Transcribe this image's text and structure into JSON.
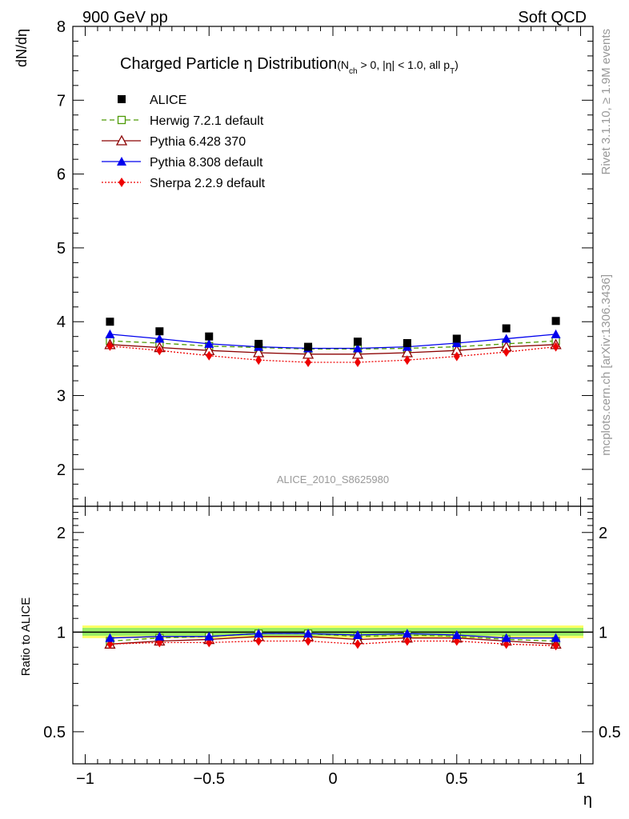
{
  "header": {
    "left": "900 GeV pp",
    "right": "Soft QCD"
  },
  "side_labels": {
    "rivet": "Rivet 3.1.10, ≥ 1.9M events",
    "mcplots": "mcplots.cern.ch [arXiv:1306.3436]"
  },
  "chart_data": [
    {
      "type": "line",
      "panel": "main",
      "title": "Charged Particle η Distribution",
      "title_cut": {
        "pre": "(N",
        "sub1": "ch",
        "mid": " > 0, |η| < 1.0, all p",
        "sub2": "T",
        "post": ")"
      },
      "ylabel": "dN/dη",
      "ylim": [
        1.5,
        8.0
      ],
      "xlim": [
        -1.05,
        1.05
      ],
      "yticks": [
        "2",
        "3",
        "4",
        "5",
        "6",
        "7",
        "8"
      ],
      "watermark": "ALICE_2010_S8625980",
      "legend_position": "top-left",
      "x": [
        -0.9,
        -0.7,
        -0.5,
        -0.3,
        -0.1,
        0.1,
        0.3,
        0.5,
        0.7,
        0.9
      ],
      "series": [
        {
          "name": "ALICE",
          "color": "#000000",
          "marker": "square-filled",
          "line": "none",
          "values": [
            4.0,
            3.87,
            3.8,
            3.7,
            3.66,
            3.73,
            3.71,
            3.77,
            3.91,
            4.01
          ]
        },
        {
          "name": "Herwig 7.2.1 default",
          "color": "#4e9a06",
          "marker": "square-open",
          "line": "dashed",
          "values": [
            3.74,
            3.71,
            3.67,
            3.65,
            3.63,
            3.63,
            3.64,
            3.66,
            3.7,
            3.74
          ]
        },
        {
          "name": "Pythia 6.428 370",
          "color": "#8b0000",
          "marker": "triangle-open",
          "line": "solid",
          "values": [
            3.69,
            3.65,
            3.61,
            3.58,
            3.56,
            3.56,
            3.58,
            3.61,
            3.66,
            3.69
          ]
        },
        {
          "name": "Pythia 8.308 default",
          "color": "#0000ee",
          "marker": "triangle-filled",
          "line": "solid",
          "values": [
            3.83,
            3.77,
            3.7,
            3.66,
            3.64,
            3.64,
            3.66,
            3.71,
            3.77,
            3.83
          ]
        },
        {
          "name": "Sherpa 2.2.9 default",
          "color": "#ee0000",
          "marker": "diamond-filled",
          "line": "dotted",
          "values": [
            3.67,
            3.61,
            3.54,
            3.48,
            3.45,
            3.45,
            3.48,
            3.53,
            3.59,
            3.66
          ]
        }
      ]
    },
    {
      "type": "line",
      "panel": "ratio",
      "ylabel": "Ratio to ALICE",
      "xlabel": "η",
      "ylog": true,
      "ylim": [
        0.4,
        2.4
      ],
      "xlim": [
        -1.05,
        1.05
      ],
      "yticks": [
        "0.5",
        "1",
        "2"
      ],
      "xticks": [
        "−1",
        "−0.5",
        "0",
        "0.5",
        "1"
      ],
      "band": {
        "lower": 0.975,
        "upper": 1.03,
        "colors": [
          "#ffff66",
          "#99ee66"
        ]
      },
      "x": [
        -0.9,
        -0.7,
        -0.5,
        -0.3,
        -0.1,
        0.1,
        0.3,
        0.5,
        0.7,
        0.9
      ],
      "series": [
        {
          "name": "Herwig 7.2.1 default",
          "color": "#4e9a06",
          "marker": "square-open",
          "line": "dashed",
          "values": [
            0.94,
            0.96,
            0.97,
            0.99,
            0.99,
            0.97,
            0.98,
            0.97,
            0.95,
            0.94
          ]
        },
        {
          "name": "Pythia 6.428 370",
          "color": "#8b0000",
          "marker": "triangle-open",
          "line": "solid",
          "values": [
            0.92,
            0.94,
            0.95,
            0.97,
            0.97,
            0.95,
            0.96,
            0.96,
            0.94,
            0.92
          ]
        },
        {
          "name": "Pythia 8.308 default",
          "color": "#0000ee",
          "marker": "triangle-filled",
          "line": "solid",
          "values": [
            0.96,
            0.97,
            0.97,
            0.99,
            0.99,
            0.98,
            0.99,
            0.98,
            0.96,
            0.96
          ]
        },
        {
          "name": "Sherpa 2.2.9 default",
          "color": "#ee0000",
          "marker": "diamond-filled",
          "line": "dotted",
          "values": [
            0.92,
            0.93,
            0.93,
            0.94,
            0.94,
            0.92,
            0.94,
            0.94,
            0.92,
            0.91
          ]
        }
      ]
    }
  ]
}
